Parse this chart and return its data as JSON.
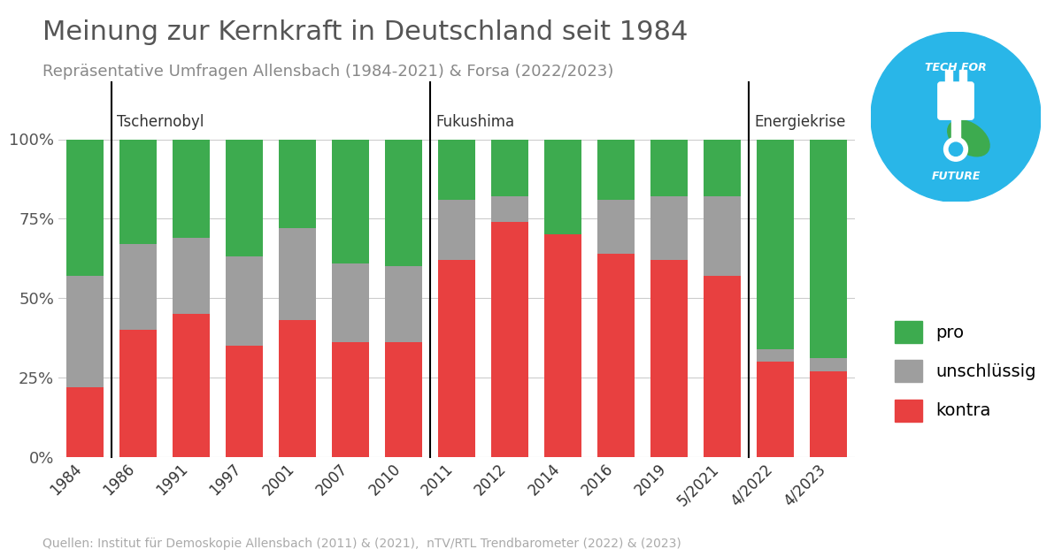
{
  "title": "Meinung zur Kernkraft in Deutschland seit 1984",
  "subtitle": "Repräsentative Umfragen Allensbach (1984-2021) & Forsa (2022/2023)",
  "source": "Quellen: Institut für Demoskopie Allensbach (2011) & (2021),  nTV/RTL Trendbarometer (2022) & (2023)",
  "years": [
    "1984",
    "1986",
    "1991",
    "1997",
    "2001",
    "2007",
    "2010",
    "2011",
    "2012",
    "2014",
    "2016",
    "2019",
    "5/2021",
    "4/2022",
    "4/2023"
  ],
  "kontra": [
    22,
    40,
    45,
    35,
    43,
    36,
    36,
    62,
    74,
    70,
    64,
    62,
    57,
    30,
    27
  ],
  "unschlussig": [
    35,
    27,
    24,
    28,
    29,
    25,
    24,
    19,
    8,
    0,
    17,
    20,
    25,
    4,
    4
  ],
  "pro": [
    43,
    33,
    31,
    37,
    28,
    39,
    40,
    19,
    18,
    30,
    19,
    18,
    18,
    66,
    69
  ],
  "vline_labels": [
    "Tschernobyl",
    "Fukushima",
    "Energiekrise"
  ],
  "vline_bar_indices": [
    0.5,
    6.5,
    12.5
  ],
  "vline_label_offsets": [
    0.1,
    0.1,
    0.1
  ],
  "color_kontra": "#e84040",
  "color_unschlussig": "#9e9e9e",
  "color_pro": "#3dab4f",
  "color_title": "#555555",
  "color_subtitle": "#888888",
  "color_source": "#aaaaaa",
  "color_vline_label": "#333333",
  "background_color": "#ffffff",
  "bar_width": 0.7,
  "logo_color": "#29b6e8",
  "logo_leaf_color": "#3dab4f"
}
